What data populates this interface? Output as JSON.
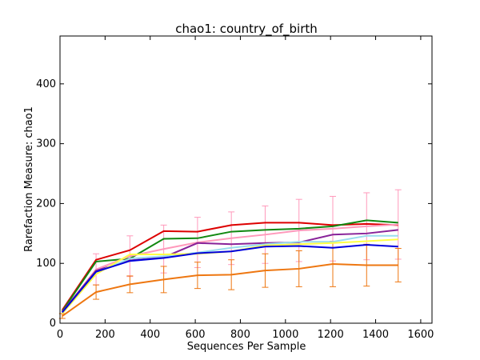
{
  "chart_data": {
    "type": "line",
    "title": "chao1: country_of_birth",
    "xlabel": "Sequences Per Sample",
    "ylabel": "Rarefaction Measure: chao1",
    "xlim": [
      0,
      1650
    ],
    "ylim": [
      0,
      480
    ],
    "xticks": [
      0,
      200,
      400,
      600,
      800,
      1000,
      1200,
      1400,
      1600
    ],
    "yticks": [
      0,
      100,
      200,
      300,
      400
    ],
    "grid": false,
    "x": [
      10,
      160,
      310,
      460,
      610,
      760,
      910,
      1060,
      1210,
      1360,
      1500
    ],
    "series": [
      {
        "color": "#dd0000",
        "values": [
          22,
          106,
          122,
          154,
          153,
          164,
          168,
          168,
          164,
          166,
          164
        ]
      },
      {
        "color": "#118811",
        "values": [
          20,
          103,
          108,
          141,
          142,
          153,
          156,
          158,
          162,
          172,
          168
        ]
      },
      {
        "color": "#ff99bb",
        "values": [
          18,
          90,
          112,
          124,
          135,
          142,
          148,
          155,
          158,
          162,
          165
        ]
      },
      {
        "color": "#882299",
        "values": [
          19,
          88,
          105,
          110,
          134,
          132,
          134,
          135,
          148,
          150,
          156
        ]
      },
      {
        "color": "#99ddee",
        "values": [
          17,
          85,
          108,
          112,
          118,
          126,
          132,
          136,
          136,
          146,
          146
        ]
      },
      {
        "color": "#ffff44",
        "values": [
          16,
          82,
          115,
          115,
          116,
          120,
          130,
          132,
          134,
          137,
          140
        ]
      },
      {
        "color": "#0000dd",
        "values": [
          18,
          86,
          104,
          109,
          117,
          120,
          128,
          129,
          126,
          131,
          128
        ]
      },
      {
        "color": "#ee7711",
        "values": [
          12,
          52,
          65,
          73,
          80,
          81,
          88,
          91,
          99,
          97,
          97
        ],
        "errors": [
          4,
          12,
          14,
          22,
          22,
          25,
          28,
          30,
          38,
          35,
          28
        ]
      }
    ],
    "error_bar_series": [
      {
        "color": "#ff99bb",
        "errors": [
          0,
          26,
          34,
          40,
          42,
          44,
          48,
          52,
          54,
          56,
          58
        ]
      },
      {
        "color": "#ee7711",
        "errors": [
          0,
          0,
          0,
          0,
          0,
          0,
          0,
          0,
          0,
          0,
          0
        ]
      }
    ]
  }
}
